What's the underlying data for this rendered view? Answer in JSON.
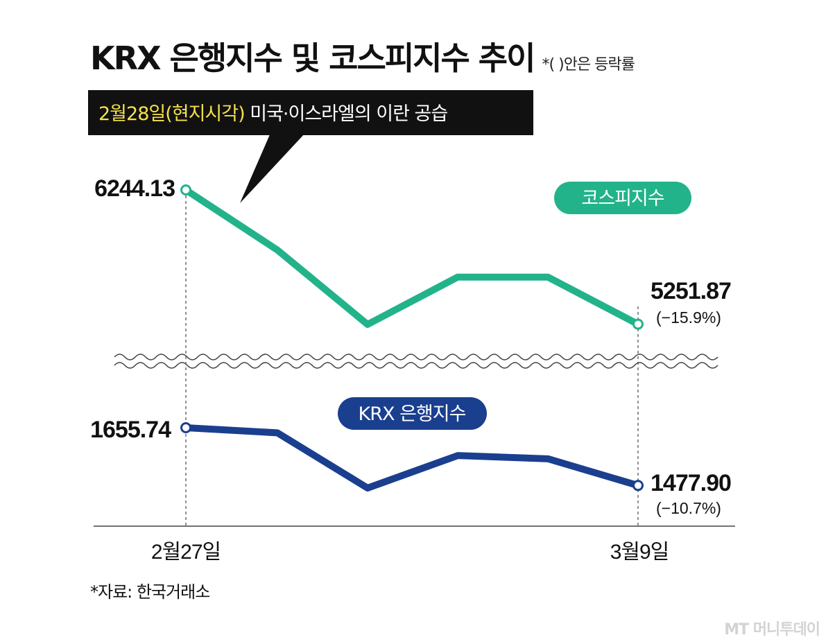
{
  "title": "KRX 은행지수 및 코스피지수 추이",
  "title_note": "*(  )안은 등락률",
  "annotation": {
    "date_text": "2월28일(현지시각)",
    "event_text": " 미국·이스라엘의 이란 공습",
    "date_color": "#f5e24a"
  },
  "source": "*자료: 한국거래소",
  "logo": "MT 머니투데이",
  "chart_data": [
    {
      "type": "line",
      "name": "코스피지수",
      "color": "#22b38a",
      "x_labels": [
        "2월27일",
        "",
        "",
        "",
        "",
        "3월9일"
      ],
      "values": [
        6244.13,
        5800,
        5250,
        5600,
        5600,
        5251.87
      ],
      "start_label": "6244.13",
      "end_label": "5251.87",
      "end_change": "(−15.9%)"
    },
    {
      "type": "line",
      "name": "KRX 은행지수",
      "color": "#1b3f8f",
      "x_labels": [
        "2월27일",
        "",
        "",
        "",
        "",
        "3월9일"
      ],
      "values": [
        1655.74,
        1640,
        1470,
        1570,
        1560,
        1477.9
      ],
      "start_label": "1655.74",
      "end_label": "1477.90",
      "end_change": "(−10.7%)"
    }
  ]
}
